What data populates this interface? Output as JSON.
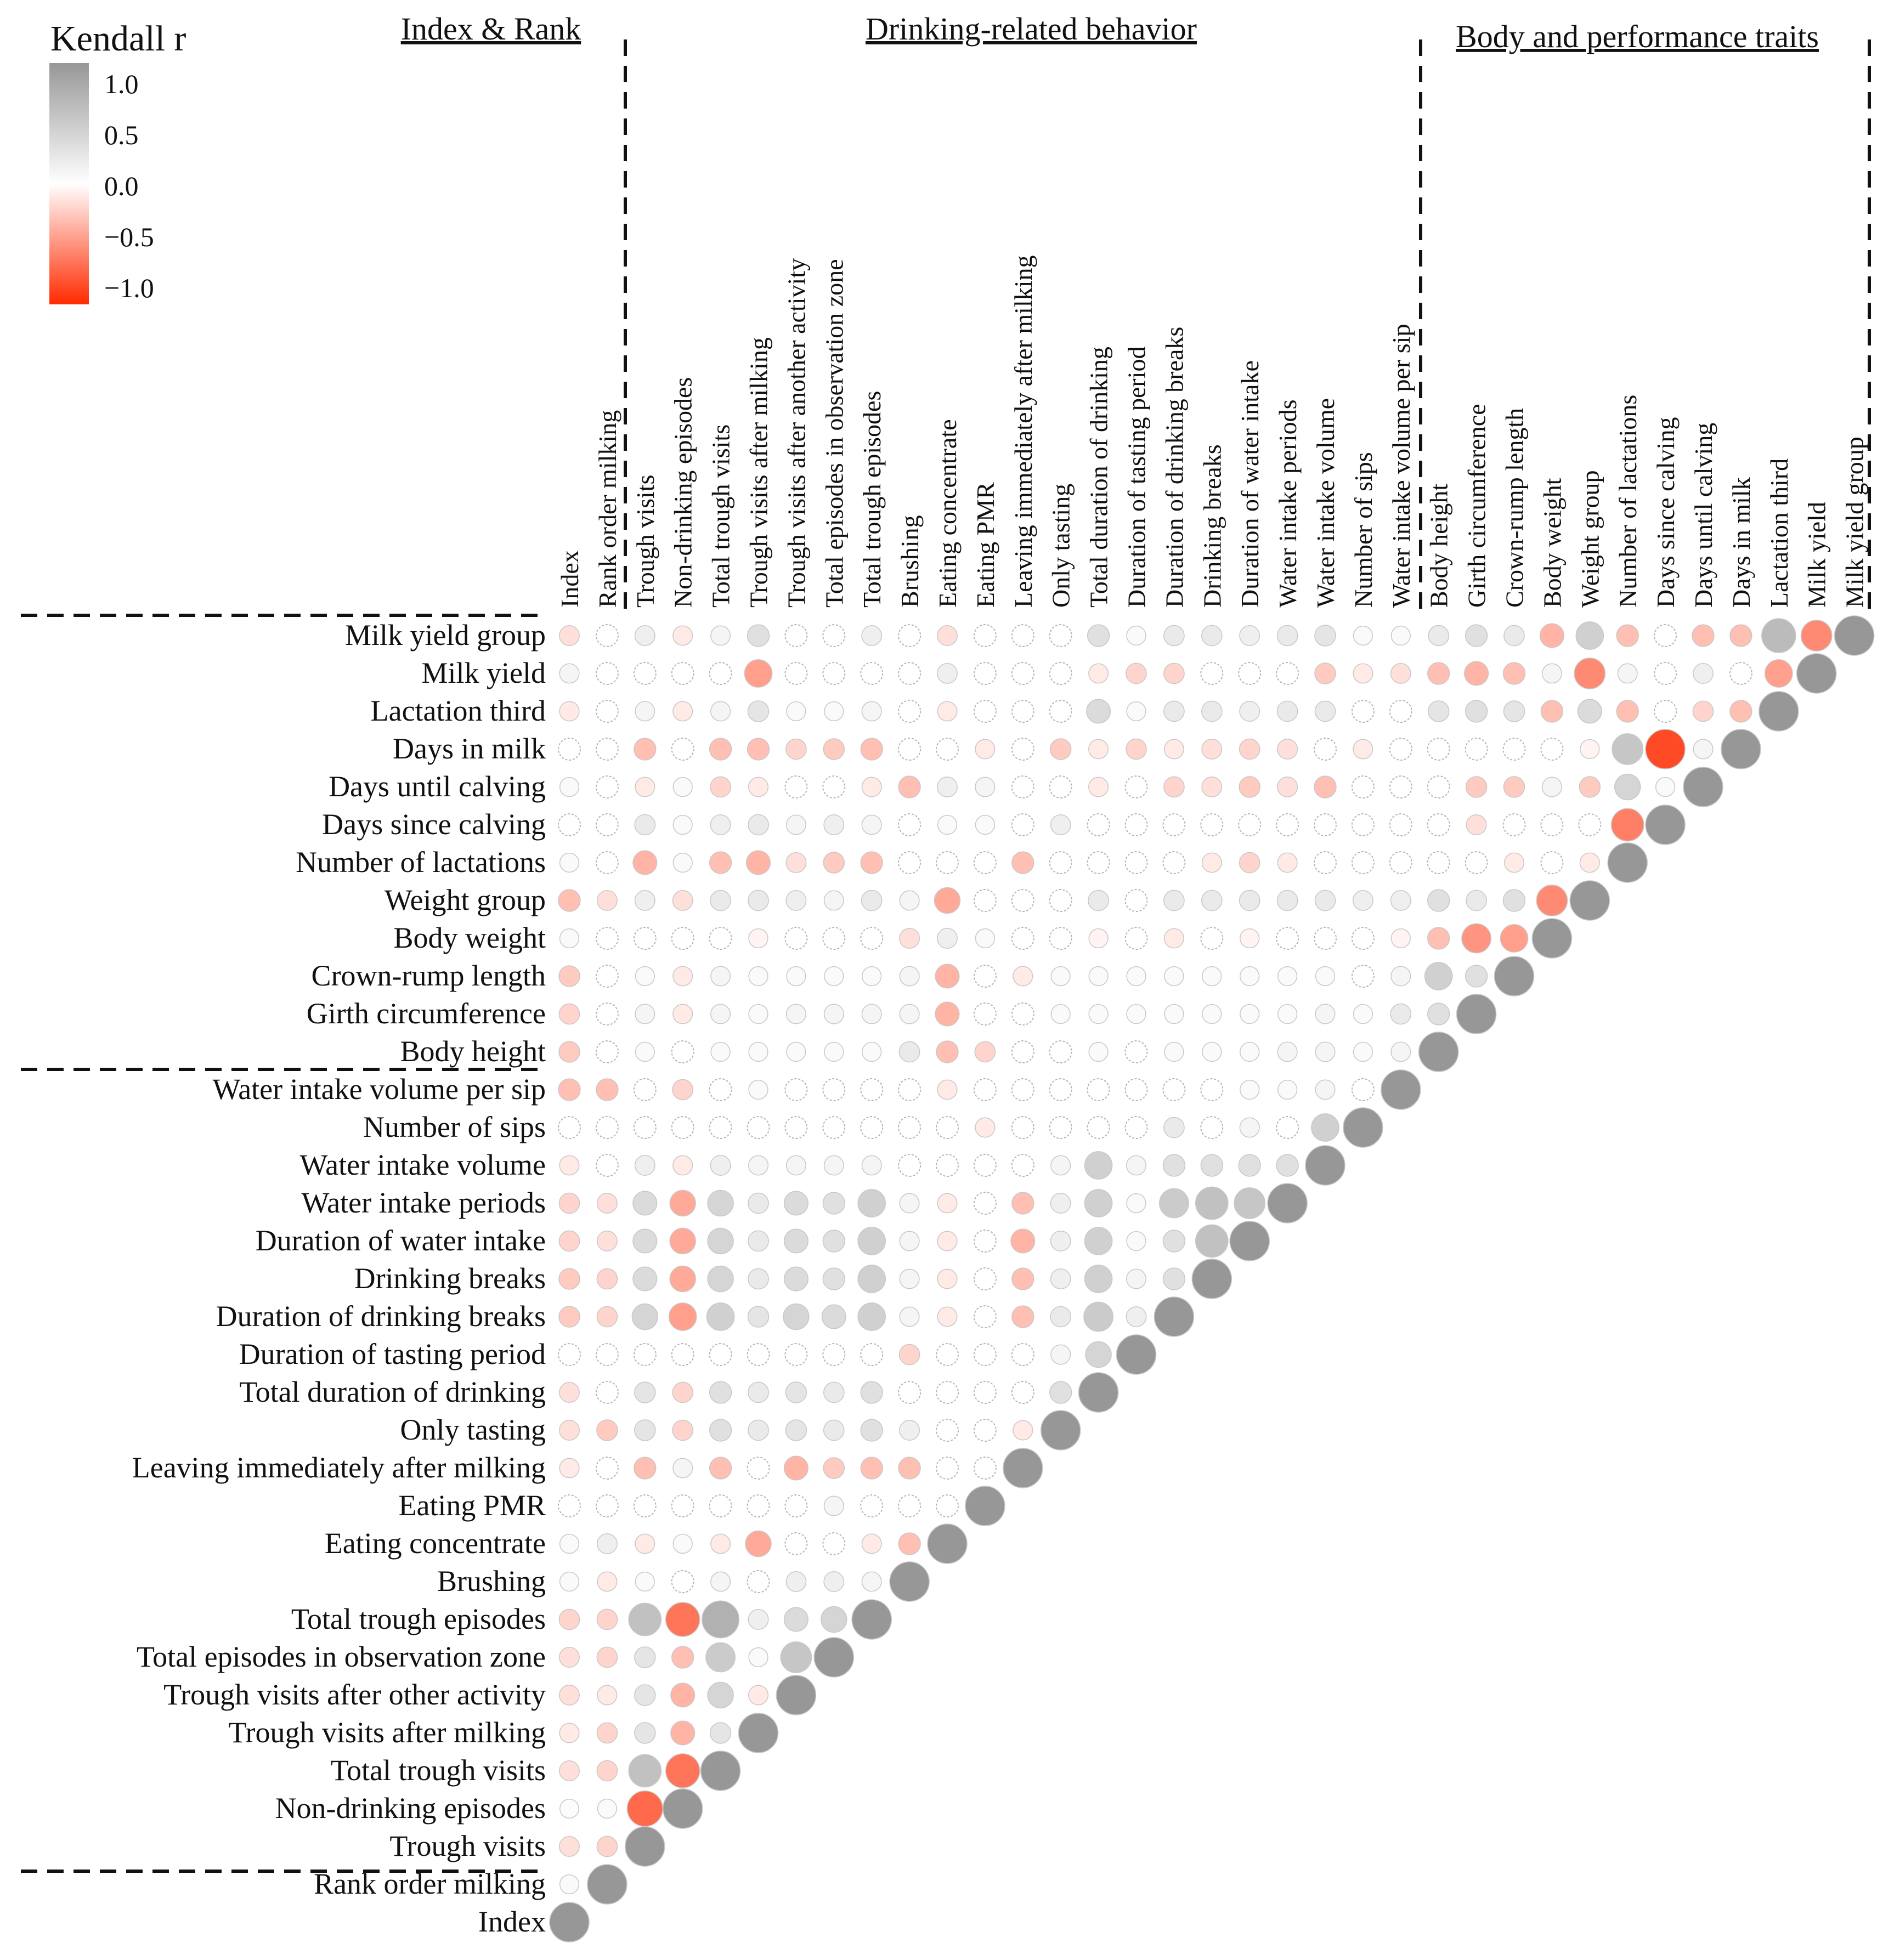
{
  "chart_data": {
    "type": "heatmap",
    "subtype": "correlogram-circles-lower-triangle",
    "legend": {
      "title": "Kendall r",
      "ticks": [
        "1.0",
        "0.5",
        "0.0",
        "−0.5",
        "−1.0"
      ],
      "colors": {
        "positive": "#979797",
        "zero": "#ffffff",
        "negative": "#ff2a00"
      },
      "placement": "top-left"
    },
    "groups": [
      {
        "label": "Index & Rank"
      },
      {
        "label": "Drinking-related behavior"
      },
      {
        "label": "Body and performance traits"
      }
    ],
    "variables": [
      "Index",
      "Rank order milking",
      "Trough visits",
      "Non-drinking episodes",
      "Total trough visits",
      "Trough visits after milking",
      "Trough visits after another activity",
      "Total episodes in observation zone",
      "Total trough episodes",
      "Brushing",
      "Eating concentrate",
      "Eating PMR",
      "Leaving immediately after milking",
      "Only tasting",
      "Total duration of drinking",
      "Duration of tasting period",
      "Duration of drinking breaks",
      "Drinking breaks",
      "Duration of water intake",
      "Water intake periods",
      "Water intake volume",
      "Number of sips",
      "Water intake volume per sip",
      "Body height",
      "Girth circumference",
      "Crown-rump length",
      "Body weight",
      "Weight group",
      "Number of lactations",
      "Days since calving",
      "Days until calving",
      "Days in milk",
      "Lactation third",
      "Milk yield",
      "Milk yield group"
    ],
    "row_labels_printed": {
      "6": "Trough visits after other activity"
    },
    "correlations": [
      [
        1.0
      ],
      [
        0.05,
        1.0
      ],
      [
        -0.15,
        -0.2,
        1.0
      ],
      [
        0.03,
        0.05,
        -0.7,
        1.0
      ],
      [
        -0.15,
        -0.2,
        0.6,
        -0.65,
        1.0
      ],
      [
        -0.1,
        -0.2,
        0.25,
        -0.35,
        0.25,
        1.0
      ],
      [
        -0.15,
        -0.1,
        0.25,
        -0.35,
        0.4,
        -0.1,
        1.0
      ],
      [
        -0.15,
        -0.2,
        0.25,
        -0.3,
        0.5,
        0.05,
        0.55,
        1.0
      ],
      [
        -0.2,
        -0.2,
        0.6,
        -0.65,
        0.75,
        0.15,
        0.35,
        0.4,
        1.0
      ],
      [
        0.05,
        -0.1,
        0.05,
        0.0,
        0.1,
        0.0,
        0.15,
        0.15,
        0.1,
        1.0
      ],
      [
        0.05,
        0.15,
        -0.1,
        0.05,
        -0.1,
        -0.4,
        0.0,
        0.0,
        -0.1,
        -0.3,
        1.0
      ],
      [
        0.0,
        0.0,
        0.0,
        0.0,
        0.0,
        0.0,
        0.0,
        0.1,
        0.0,
        0.0,
        0.0,
        1.0
      ],
      [
        -0.1,
        0.0,
        -0.3,
        0.1,
        -0.3,
        0.0,
        -0.35,
        -0.25,
        -0.3,
        -0.3,
        0.0,
        0.0,
        1.0
      ],
      [
        -0.15,
        -0.25,
        0.25,
        -0.2,
        0.3,
        0.2,
        0.25,
        0.2,
        0.3,
        0.15,
        0.0,
        0.0,
        -0.1,
        1.0
      ],
      [
        -0.15,
        0.0,
        0.25,
        -0.2,
        0.3,
        0.2,
        0.25,
        0.2,
        0.3,
        0.0,
        0.0,
        0.0,
        0.0,
        0.3,
        1.0
      ],
      [
        0.0,
        0.0,
        0.0,
        0.0,
        0.0,
        0.0,
        0.0,
        0.0,
        0.0,
        -0.2,
        0.0,
        0.0,
        0.0,
        0.1,
        0.4,
        1.0
      ],
      [
        -0.25,
        -0.2,
        0.4,
        -0.45,
        0.45,
        0.25,
        0.4,
        0.35,
        0.45,
        0.1,
        -0.1,
        0.0,
        -0.3,
        0.2,
        0.5,
        0.15,
        1.0
      ],
      [
        -0.25,
        -0.2,
        0.35,
        -0.4,
        0.4,
        0.2,
        0.35,
        0.3,
        0.45,
        0.1,
        -0.1,
        0.0,
        -0.3,
        0.15,
        0.45,
        0.1,
        0.3,
        1.0
      ],
      [
        -0.2,
        -0.15,
        0.35,
        -0.4,
        0.4,
        0.2,
        0.35,
        0.3,
        0.45,
        0.1,
        -0.1,
        0.0,
        -0.35,
        0.15,
        0.45,
        0.05,
        0.3,
        0.6,
        1.0
      ],
      [
        -0.2,
        -0.15,
        0.35,
        -0.4,
        0.4,
        0.2,
        0.35,
        0.3,
        0.45,
        0.1,
        -0.1,
        0.0,
        -0.3,
        0.15,
        0.45,
        0.05,
        0.5,
        0.6,
        0.55,
        1.0
      ],
      [
        -0.1,
        0.0,
        0.15,
        -0.1,
        0.15,
        0.1,
        0.1,
        0.1,
        0.1,
        0.0,
        0.0,
        0.0,
        0.0,
        0.1,
        0.45,
        0.1,
        0.3,
        0.3,
        0.3,
        0.3,
        1.0
      ],
      [
        0.0,
        0.0,
        0.0,
        0.0,
        0.0,
        0.0,
        0.0,
        0.0,
        0.0,
        0.0,
        0.0,
        -0.1,
        0.0,
        0.0,
        0.0,
        0.0,
        0.2,
        0.0,
        0.1,
        0.0,
        0.45,
        1.0
      ],
      [
        -0.3,
        -0.3,
        0.0,
        -0.2,
        0.0,
        0.05,
        0.0,
        0.0,
        0.0,
        0.0,
        -0.1,
        0.0,
        0.0,
        0.0,
        0.0,
        0.0,
        0.0,
        0.0,
        0.05,
        0.05,
        0.1,
        0.0,
        1.0
      ],
      [
        -0.25,
        0.0,
        0.05,
        0.0,
        0.05,
        0.05,
        0.05,
        0.05,
        0.05,
        0.2,
        -0.3,
        -0.2,
        0.0,
        0.0,
        0.05,
        0.0,
        0.05,
        0.05,
        0.05,
        0.1,
        0.1,
        0.05,
        0.1,
        1.0
      ],
      [
        -0.2,
        0.0,
        0.1,
        -0.1,
        0.1,
        0.05,
        0.1,
        0.1,
        0.1,
        0.1,
        -0.35,
        0.0,
        0.0,
        0.05,
        0.05,
        0.05,
        0.05,
        0.05,
        0.05,
        0.05,
        0.1,
        0.05,
        0.2,
        0.3,
        1.0
      ],
      [
        -0.25,
        0.0,
        0.05,
        -0.1,
        0.1,
        0.05,
        0.05,
        0.05,
        0.05,
        0.1,
        -0.35,
        0.0,
        -0.1,
        0.05,
        0.05,
        0.05,
        0.05,
        0.05,
        0.05,
        0.05,
        0.05,
        0.0,
        0.1,
        0.45,
        0.3,
        1.0
      ],
      [
        0.05,
        0.0,
        0.0,
        0.0,
        0.0,
        -0.05,
        0.0,
        0.0,
        0.0,
        -0.15,
        0.15,
        0.05,
        0.0,
        0.0,
        -0.05,
        0.0,
        -0.1,
        0.0,
        -0.05,
        0.0,
        0.0,
        0.0,
        -0.05,
        -0.3,
        -0.5,
        -0.45,
        1.0
      ],
      [
        -0.3,
        -0.15,
        0.15,
        -0.15,
        0.2,
        0.2,
        0.15,
        0.1,
        0.2,
        0.1,
        -0.4,
        0.0,
        0.0,
        0.0,
        0.2,
        0.0,
        0.2,
        0.2,
        0.2,
        0.2,
        0.2,
        0.15,
        0.15,
        0.3,
        0.2,
        0.3,
        -0.55,
        1.0
      ],
      [
        0.05,
        0.0,
        -0.35,
        0.05,
        -0.3,
        -0.35,
        -0.15,
        -0.25,
        -0.3,
        0.0,
        0.0,
        0.0,
        -0.3,
        0.0,
        0.0,
        0.0,
        0.0,
        -0.1,
        -0.2,
        -0.1,
        0.0,
        0.0,
        0.0,
        0.0,
        0.0,
        -0.1,
        0.0,
        -0.1,
        1.0
      ],
      [
        0.0,
        0.0,
        0.2,
        0.05,
        0.15,
        0.2,
        0.1,
        0.15,
        0.1,
        0.0,
        0.05,
        0.05,
        0.0,
        0.15,
        0.0,
        0.0,
        0.0,
        0.0,
        0.0,
        0.0,
        0.0,
        0.0,
        0.0,
        0.0,
        -0.15,
        0.0,
        0.0,
        0.0,
        -0.6,
        1.0
      ],
      [
        0.05,
        0.0,
        -0.1,
        0.05,
        -0.2,
        -0.1,
        0.0,
        0.0,
        -0.1,
        -0.3,
        0.15,
        0.1,
        0.0,
        0.0,
        -0.1,
        0.0,
        -0.2,
        -0.15,
        -0.25,
        -0.15,
        -0.3,
        0.0,
        0.0,
        0.0,
        -0.25,
        -0.25,
        0.1,
        -0.25,
        0.4,
        0.05,
        1.0
      ],
      [
        0.0,
        0.0,
        -0.3,
        0.0,
        -0.3,
        -0.3,
        -0.2,
        -0.25,
        -0.3,
        0.0,
        0.0,
        -0.1,
        0.0,
        -0.25,
        -0.1,
        -0.2,
        -0.1,
        -0.15,
        -0.2,
        -0.15,
        0.0,
        -0.1,
        0.0,
        0.0,
        0.0,
        0.0,
        0.0,
        -0.05,
        0.55,
        -0.85,
        0.1,
        1.0
      ],
      [
        -0.1,
        0.0,
        0.1,
        -0.1,
        0.1,
        0.25,
        0.05,
        0.05,
        0.1,
        0.0,
        -0.1,
        0.0,
        0.0,
        0.0,
        0.35,
        0.05,
        0.2,
        0.2,
        0.15,
        0.2,
        0.2,
        0.0,
        0.0,
        0.25,
        0.3,
        0.25,
        -0.3,
        0.35,
        -0.3,
        0.0,
        -0.2,
        -0.3,
        1.0
      ],
      [
        0.1,
        0.0,
        0.0,
        0.0,
        0.0,
        -0.45,
        0.0,
        0.0,
        0.0,
        0.0,
        0.15,
        0.0,
        0.0,
        0.0,
        -0.1,
        -0.2,
        -0.2,
        0.0,
        0.0,
        0.0,
        -0.25,
        -0.1,
        -0.15,
        -0.3,
        -0.35,
        -0.3,
        0.1,
        -0.55,
        0.1,
        0.0,
        0.15,
        0.0,
        -0.45,
        1.0
      ],
      [
        -0.15,
        0.0,
        0.15,
        -0.1,
        0.1,
        0.3,
        0.0,
        0.0,
        0.15,
        0.0,
        -0.15,
        0.0,
        0.0,
        0.0,
        0.3,
        0.05,
        0.2,
        0.2,
        0.15,
        0.2,
        0.25,
        0.05,
        0.05,
        0.2,
        0.3,
        0.2,
        -0.35,
        0.45,
        -0.3,
        0.0,
        -0.3,
        -0.3,
        0.65,
        -0.55,
        1.0
      ]
    ]
  }
}
